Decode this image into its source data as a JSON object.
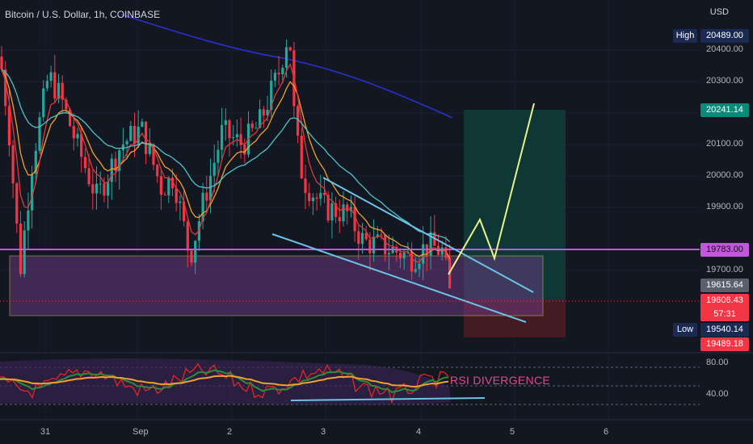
{
  "header": {
    "title": "Bitcoin / U.S. Dollar, 1h, COINBASE",
    "currency": "USD"
  },
  "price_tags": {
    "high_label": "High",
    "high_value": "20489.00",
    "target_value": "20241.14",
    "level_value": "19783.00",
    "current_value": "19615.64",
    "last_value": "19606.43",
    "countdown": "57:31",
    "low_label": "Low",
    "low_value": "19540.14",
    "stop_value": "19489.18"
  },
  "annotations": {
    "rsi_divergence": "RSI DIVERGENCE"
  },
  "colors": {
    "bull": "#26a69a",
    "bear": "#f23645",
    "background": "#131722",
    "level": "#c158dc",
    "trend": "#6bc3e8",
    "projection": "#eaf28c",
    "target_zone": "#0f3b37",
    "stop_zone": "#4a1c24"
  },
  "chart_data": {
    "type": "candlestick",
    "title": "Bitcoin / U.S. Dollar, 1h, COINBASE",
    "y_axis": {
      "ticks": [
        20400,
        20300,
        20200,
        20100,
        20000,
        19900,
        19700
      ],
      "range": [
        19440,
        20560
      ],
      "unit": "USD"
    },
    "x_axis": {
      "ticks": [
        "31",
        "Sep",
        "2",
        "3",
        "4",
        "5",
        "6"
      ]
    },
    "horizontal_level": 19783.0,
    "high": 20489.0,
    "low": 19540.14,
    "last": 19606.43,
    "long_position": {
      "entry": 19615.64,
      "target": 20241.14,
      "stop": 19489.18
    },
    "indicators": [
      "EMA fast",
      "EMA slow",
      "EMA long",
      "trend ribbon"
    ],
    "rsi": {
      "ticks": [
        80.0,
        40.0
      ],
      "annotation": "RSI DIVERGENCE"
    }
  }
}
